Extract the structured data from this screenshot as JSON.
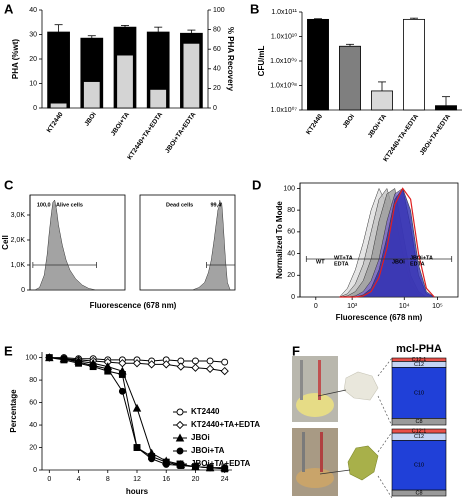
{
  "chart_data": [
    {
      "panel": "A",
      "type": "bar",
      "categories": [
        "KT2440",
        "JBOi",
        "JBOi+TA",
        "KT2440+TA+EDTA",
        "JBOi+TA+EDTA"
      ],
      "series": [
        {
          "color": "#000000",
          "values": [
            31,
            28.5,
            33,
            31,
            30.5
          ],
          "errors": [
            3,
            1,
            0.7,
            2,
            1.3
          ]
        },
        {
          "color": "#d4d4d4",
          "axis": "y2",
          "values": [
            5,
            27,
            54,
            19,
            66
          ]
        }
      ],
      "ylabel": "PHA (%wt)",
      "y2label": "% PHA Recovery",
      "ylim": [
        0,
        40
      ],
      "yticks": [
        0,
        10,
        20,
        30,
        40
      ],
      "y2lim": [
        0,
        100
      ],
      "y2ticks": [
        0,
        20,
        40,
        60,
        80,
        100
      ]
    },
    {
      "panel": "B",
      "type": "bar",
      "log": true,
      "categories": [
        "KT2440",
        "JBOi",
        "JBOi+TA",
        "KT2440+TA+EDTA",
        "JBOi+TA+EDTA"
      ],
      "values": [
        50000000000,
        4000000000,
        60000000,
        50000000000,
        15000000
      ],
      "errors": [
        3000000000,
        800000000,
        80000000,
        6000000000,
        20000000
      ],
      "colors": [
        "#000000",
        "#7f7f7f",
        "#d9d9d9",
        "#ffffff",
        "#000000"
      ],
      "ylabel": "CFU/mL",
      "ylim": [
        10000000,
        100000000000
      ],
      "yticks": [
        {
          "value": 10000000,
          "label": "1.0x10⁰⁷"
        },
        {
          "value": 100000000,
          "label": "1.0x10⁰⁸"
        },
        {
          "value": 1000000000,
          "label": "1.0x10⁰⁹"
        },
        {
          "value": 10000000000,
          "label": "1.0x10¹⁰"
        },
        {
          "value": 100000000000,
          "label": "1.0x10¹¹"
        }
      ]
    },
    {
      "panel": "C",
      "type": "area",
      "title": "Alive cells",
      "frame": true,
      "ylabel": "Cell",
      "xlabel": "Fluorescence (678 nm)",
      "color": "#8c8c8c",
      "x": [
        5,
        10,
        15,
        18,
        20,
        22,
        24,
        26,
        28,
        30,
        34,
        38,
        42,
        48,
        55,
        62,
        70
      ],
      "values": [
        0,
        100,
        600,
        1400,
        2200,
        2900,
        3500,
        3600,
        3200,
        2600,
        1800,
        1200,
        800,
        450,
        200,
        60,
        0
      ],
      "xlim": [
        0,
        100
      ],
      "ylim": [
        0,
        3800
      ],
      "yticks": [
        0,
        {
          "value": 1000,
          "label": "1,0K"
        },
        {
          "value": 2000,
          "label": "2,0K"
        },
        {
          "value": 3000,
          "label": "3,0K"
        }
      ],
      "gate": {
        "x": [
          3,
          70
        ],
        "y": 1000,
        "label": "100,0"
      }
    },
    {
      "type": "area",
      "title": "Dead cells",
      "frame": true,
      "color": "#8c8c8c",
      "x": [
        55,
        62,
        68,
        72,
        75,
        78,
        80,
        82,
        83,
        84,
        85,
        86,
        87,
        88,
        90,
        92,
        95
      ],
      "values": [
        0,
        100,
        300,
        700,
        1200,
        2000,
        2600,
        3200,
        3300,
        3600,
        3400,
        3500,
        3000,
        2400,
        1200,
        300,
        0
      ],
      "xlim": [
        0,
        100
      ],
      "ylim": [
        0,
        3800
      ],
      "gate": {
        "x": [
          70,
          100
        ],
        "y": 1000,
        "label": "99,4"
      }
    },
    {
      "panel": "D",
      "type": "area",
      "frame": true,
      "ylabel": "Normalized To Mode",
      "xlabel": "Fluorescence (678 nm)",
      "x": [
        25,
        30,
        35,
        40,
        45,
        50,
        55,
        60,
        65,
        70,
        75,
        80,
        85
      ],
      "series": [
        {
          "color": "#dedede",
          "values": [
            0,
            8,
            25,
            50,
            80,
            100,
            85,
            55,
            25,
            8,
            2,
            0,
            0
          ]
        },
        {
          "color": "#c2c2c2",
          "values": [
            0,
            3,
            12,
            30,
            60,
            90,
            100,
            75,
            40,
            12,
            3,
            0,
            0
          ]
        },
        {
          "color": "#9c9c9c",
          "values": [
            0,
            1,
            5,
            15,
            35,
            70,
            95,
            100,
            60,
            20,
            5,
            0,
            0
          ]
        },
        {
          "color": "#7b68c8",
          "values": [
            0,
            0,
            1,
            5,
            15,
            35,
            70,
            95,
            100,
            65,
            20,
            3,
            0
          ]
        },
        {
          "color": "#2b2bb0",
          "values": [
            0,
            0,
            0,
            2,
            8,
            25,
            55,
            90,
            100,
            80,
            30,
            5,
            0
          ]
        },
        {
          "color": "#e02020",
          "outline": true,
          "values": [
            0,
            0,
            0,
            1,
            5,
            18,
            45,
            85,
            100,
            90,
            40,
            8,
            0
          ]
        }
      ],
      "xlim": [
        0,
        100
      ],
      "xticks": [
        {
          "value": 10,
          "label": "0"
        },
        {
          "value": 33,
          "label": "10³"
        },
        {
          "value": 66,
          "label": "10⁴"
        },
        {
          "value": 87,
          "label": "10⁵"
        }
      ],
      "ylim": [
        0,
        105
      ],
      "yticks": [
        0,
        20,
        40,
        60,
        80,
        100
      ],
      "gate": {
        "x": [
          4,
          96
        ],
        "y": 35
      },
      "annotations": [
        [
          "WT"
        ],
        [
          "WT+TA",
          "EDTA"
        ],
        [
          "JBOi"
        ],
        [
          "JBOi+TA",
          "EDTA"
        ]
      ]
    },
    {
      "panel": "E",
      "type": "line",
      "ylabel": "Percentage",
      "xlabel": "hours",
      "x": [
        0,
        2,
        4,
        6,
        8,
        10,
        12,
        14,
        16,
        18,
        20,
        22,
        24
      ],
      "xlim": [
        -1,
        25
      ],
      "xticks": [
        0,
        4,
        8,
        12,
        16,
        20,
        24
      ],
      "ylim": [
        0,
        105
      ],
      "yticks": [
        0,
        20,
        40,
        60,
        80,
        100
      ],
      "legend": "right",
      "series": [
        {
          "name": "KT2440",
          "marker": "circle-open",
          "color": "#000000",
          "values": [
            100,
            100,
            99,
            99,
            98,
            98,
            98,
            97,
            98,
            97,
            97,
            97,
            96
          ]
        },
        {
          "name": "KT2440+TA+EDTA",
          "marker": "diamond-open",
          "color": "#000000",
          "values": [
            100,
            99,
            98,
            97,
            96,
            95,
            95,
            94,
            94,
            92,
            91,
            90,
            88
          ]
        },
        {
          "name": "JBOi",
          "marker": "triangle",
          "color": "#000000",
          "values": [
            100,
            99,
            97,
            95,
            92,
            88,
            55,
            15,
            8,
            5,
            3,
            2,
            2
          ]
        },
        {
          "name": "JBOi+TA",
          "marker": "circle",
          "color": "#000000",
          "values": [
            100,
            99,
            96,
            93,
            90,
            70,
            20,
            10,
            5,
            4,
            3,
            2,
            2
          ]
        },
        {
          "name": "JBOi+TA+EDTA",
          "marker": "square",
          "color": "#000000",
          "values": [
            100,
            98,
            95,
            92,
            88,
            85,
            20,
            12,
            7,
            4,
            3,
            2,
            1
          ]
        }
      ]
    },
    {
      "panel": "F",
      "type": "stacked_bar",
      "title": "mcl-PHA",
      "categories": [
        null,
        null
      ],
      "ylim": [
        0,
        100
      ],
      "series": [
        {
          "name": "C8",
          "color": "#9a9a9a",
          "values": [
            10,
            9
          ]
        },
        {
          "name": "C10",
          "color": "#2040d8",
          "values": [
            76,
            74
          ]
        },
        {
          "name": "C12",
          "color": "#c4d4f4",
          "values": [
            9,
            11
          ]
        },
        {
          "name": "C12:1",
          "color": "#e8504a",
          "values": [
            5,
            6
          ]
        }
      ]
    }
  ]
}
